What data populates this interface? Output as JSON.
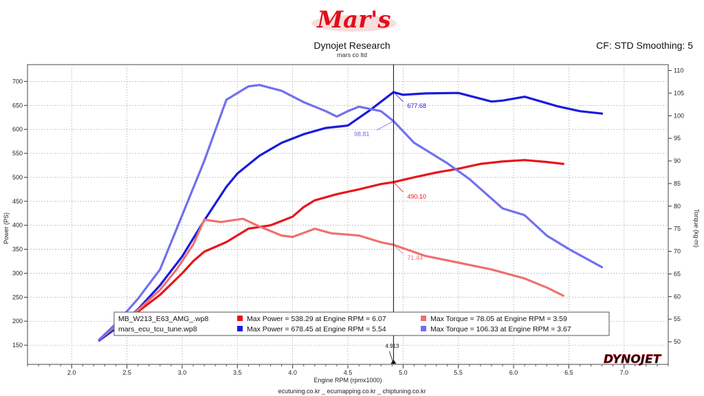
{
  "header": {
    "logo_text": "Mar's",
    "title": "Dynojet Research",
    "subtitle": "mars co ltd",
    "correction": "CF: STD Smoothing: 5"
  },
  "footer": {
    "text": "ecutuning.co.kr _ ecumapping.co.kr _ chiptuning.co.kr"
  },
  "branding": {
    "dynojet": "DYNOJET"
  },
  "chart_data": {
    "type": "line",
    "xlabel": "Engine RPM (rpmx1000)",
    "ylabel_left": "Power (PS)",
    "ylabel_right": "Torque (kg-m)",
    "xlim": [
      1.6,
      7.4
    ],
    "ylim_left": [
      110,
      735
    ],
    "ylim_right": [
      45,
      111.3
    ],
    "x_ticks": [
      "2.0",
      "2.5",
      "3.0",
      "3.5",
      "4.0",
      "4.5",
      "5.0",
      "5.5",
      "6.0",
      "6.5",
      "7.0"
    ],
    "y_left_ticks": [
      "150",
      "200",
      "250",
      "300",
      "350",
      "400",
      "450",
      "500",
      "550",
      "600",
      "650",
      "700"
    ],
    "y_right_ticks": [
      "50",
      "55",
      "60",
      "65",
      "70",
      "75",
      "80",
      "85",
      "90",
      "95",
      "100",
      "105",
      "110"
    ],
    "cursor": {
      "x": 4.913,
      "label": "4.913"
    },
    "cursor_labels": [
      {
        "series": "power_stock",
        "value": "490.10",
        "color": "#e8141b"
      },
      {
        "series": "power_tune",
        "value": "677.68",
        "color": "#1a1adc"
      },
      {
        "series": "torque_stock",
        "value": "71.44",
        "color": "#f07070"
      },
      {
        "series": "torque_tune",
        "value": "98.81",
        "color": "#7070f0"
      }
    ],
    "series": [
      {
        "key": "power_stock",
        "axis": "left",
        "color": "#e8141b",
        "x": [
          2.25,
          2.4,
          2.6,
          2.8,
          3.0,
          3.1,
          3.2,
          3.4,
          3.6,
          3.8,
          4.0,
          4.1,
          4.2,
          4.4,
          4.6,
          4.8,
          4.913,
          5.1,
          5.3,
          5.5,
          5.7,
          5.9,
          6.1,
          6.3,
          6.45
        ],
        "y": [
          160,
          190,
          220,
          255,
          300,
          325,
          345,
          365,
          393,
          400,
          418,
          438,
          452,
          465,
          475,
          486,
          490,
          500,
          510,
          518,
          528,
          533,
          536,
          532,
          528
        ]
      },
      {
        "key": "power_tune",
        "axis": "left",
        "color": "#1a1adc",
        "x": [
          2.25,
          2.4,
          2.6,
          2.8,
          3.0,
          3.2,
          3.4,
          3.5,
          3.7,
          3.9,
          4.1,
          4.3,
          4.5,
          4.7,
          4.913,
          5.0,
          5.2,
          5.5,
          5.8,
          5.9,
          6.1,
          6.4,
          6.6,
          6.8
        ],
        "y": [
          160,
          185,
          225,
          275,
          335,
          410,
          480,
          508,
          545,
          572,
          590,
          603,
          608,
          640,
          677.68,
          672,
          675,
          676,
          658,
          660,
          668,
          648,
          638,
          633
        ]
      },
      {
        "key": "torque_stock",
        "axis": "right",
        "color": "#f07070",
        "x": [
          2.25,
          2.4,
          2.6,
          2.8,
          2.95,
          3.1,
          3.2,
          3.35,
          3.55,
          3.7,
          3.9,
          4.0,
          4.2,
          4.35,
          4.6,
          4.8,
          4.913,
          5.2,
          5.5,
          5.8,
          6.1,
          6.3,
          6.45
        ],
        "y": [
          50.5,
          53.5,
          57,
          61.5,
          66,
          71.5,
          77,
          76.5,
          77.2,
          75.5,
          73.5,
          73.2,
          75,
          74,
          73.5,
          72,
          71.44,
          69,
          67.5,
          66,
          64,
          62,
          60.2
        ]
      },
      {
        "key": "torque_tune",
        "axis": "right",
        "color": "#7070f0",
        "x": [
          2.25,
          2.4,
          2.6,
          2.8,
          3.0,
          3.2,
          3.4,
          3.6,
          3.7,
          3.9,
          4.1,
          4.3,
          4.4,
          4.5,
          4.6,
          4.8,
          4.913,
          5.1,
          5.4,
          5.6,
          5.9,
          6.1,
          6.3,
          6.5,
          6.8
        ],
        "y": [
          50.5,
          54,
          59.5,
          66,
          78,
          90,
          103.5,
          106.5,
          106.8,
          105.5,
          103,
          101,
          99.8,
          101,
          102,
          101,
          98.81,
          94,
          89.5,
          86,
          79.5,
          78,
          73.5,
          70.5,
          66.5
        ]
      }
    ],
    "legend": {
      "position": "bottom-center",
      "rows": [
        {
          "file": "MB_W213_E63_AMG_.wp8",
          "power_color": "#e8141b",
          "power_text": "Max Power = 538.29 at Engine RPM = 6.07",
          "torque_color": "#f07070",
          "torque_text": "Max Torque = 78.05 at Engine RPM = 3.59"
        },
        {
          "file": "mars_ecu_tcu_tune.wp8",
          "power_color": "#1a1adc",
          "power_text": "Max Power = 678.45 at Engine RPM = 5.54",
          "torque_color": "#7070f0",
          "torque_text": "Max Torque = 106.33 at Engine RPM = 3.67"
        }
      ]
    }
  }
}
